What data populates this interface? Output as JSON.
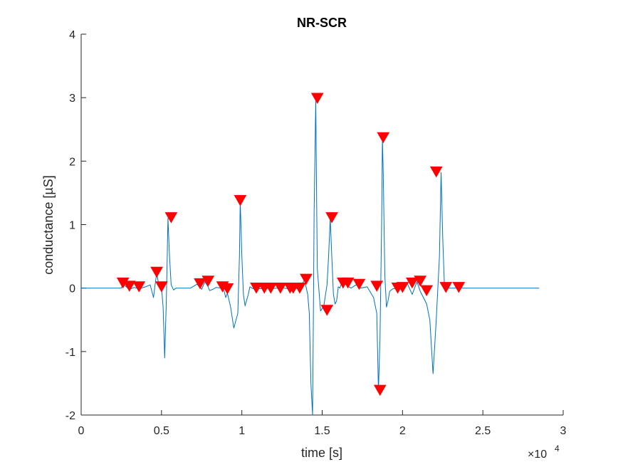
{
  "chart_data": {
    "type": "line",
    "title": "NR-SCR",
    "xlabel": "time [s]",
    "ylabel": "conductance [µS]",
    "xlim": [
      0,
      3
    ],
    "ylim": [
      -2,
      4
    ],
    "x_scale_label": "×10",
    "x_scale_exponent": "4",
    "xticks": [
      0,
      0.5,
      1,
      1.5,
      2,
      2.5,
      3
    ],
    "xtick_labels": [
      "0",
      "0.5",
      "1",
      "1.5",
      "2",
      "2.5",
      "3"
    ],
    "yticks": [
      -2,
      -1,
      0,
      1,
      2,
      3,
      4
    ],
    "ytick_labels": [
      "-2",
      "-1",
      "0",
      "1",
      "2",
      "3",
      "4"
    ],
    "grid": false,
    "line_color": "#0072BD",
    "marker_color": "#FF0000",
    "series": [
      {
        "x": [
          0,
          0.25,
          0.26,
          0.28,
          0.3,
          0.33,
          0.36,
          0.4,
          0.43,
          0.45,
          0.46,
          0.47,
          0.48,
          0.5,
          0.51,
          0.52,
          0.53,
          0.535,
          0.54,
          0.55,
          0.56,
          0.575,
          0.59,
          0.62,
          0.68,
          0.72,
          0.74,
          0.75,
          0.77,
          0.79,
          0.8,
          0.82,
          0.84,
          0.87,
          0.89,
          0.9,
          0.91,
          0.93,
          0.95,
          0.975,
          0.985,
          0.99,
          1.0,
          1.01,
          1.02,
          1.04,
          1.05,
          1.07,
          1.09,
          1.11,
          1.14,
          1.18,
          1.22,
          1.26,
          1.3,
          1.33,
          1.36,
          1.39,
          1.41,
          1.42,
          1.43,
          1.44,
          1.445,
          1.45,
          1.46,
          1.465,
          1.47,
          1.49,
          1.51,
          1.53,
          1.54,
          1.55,
          1.56,
          1.57,
          1.58,
          1.59,
          1.6,
          1.61,
          1.62,
          1.63,
          1.64,
          1.66,
          1.68,
          1.71,
          1.74,
          1.78,
          1.82,
          1.84,
          1.85,
          1.86,
          1.87,
          1.875,
          1.88,
          1.89,
          1.9,
          1.91,
          1.92,
          1.94,
          1.97,
          2.0,
          2.03,
          2.06,
          2.09,
          2.11,
          2.13,
          2.15,
          2.17,
          2.19,
          2.21,
          2.23,
          2.24,
          2.25,
          2.26,
          2.27,
          2.28,
          2.3,
          2.32,
          2.35,
          2.4,
          2.5,
          2.7,
          2.85
        ],
        "y": [
          0,
          0,
          0.07,
          0.02,
          -0.02,
          0.01,
          -0.01,
          0.02,
          0.05,
          -0.15,
          0.05,
          0.24,
          0.1,
          0.01,
          -0.3,
          -1.1,
          -0.2,
          0.4,
          1.1,
          0.5,
          0.05,
          -0.03,
          0,
          0,
          0,
          0.06,
          0.02,
          -0.02,
          0.1,
          0.02,
          -0.04,
          -0.02,
          0.01,
          0.0,
          -0.05,
          -0.15,
          -0.08,
          -0.3,
          -0.63,
          -0.4,
          0.5,
          1.37,
          0.5,
          -0.1,
          -0.28,
          -0.1,
          0.02,
          -0.01,
          0.01,
          -0.01,
          0.0,
          -0.01,
          0.0,
          0.0,
          -0.01,
          -0.01,
          0.0,
          0.13,
          -0.1,
          -0.4,
          -1.5,
          -2.0,
          -0.5,
          1.2,
          2.98,
          1.5,
          0.3,
          -0.36,
          -0.28,
          0.05,
          0.5,
          1.1,
          0.5,
          -0.1,
          -0.25,
          -0.2,
          0.02,
          0.0,
          0.07,
          0.0,
          0.07,
          0.03,
          0.0,
          0.05,
          0.0,
          0.02,
          -0.15,
          -0.4,
          -1.62,
          -0.8,
          1.0,
          2.36,
          1.8,
          0.2,
          -0.3,
          -0.2,
          -0.05,
          -0.01,
          0.0,
          0.0,
          0.07,
          -0.1,
          0.1,
          -0.05,
          -0.15,
          -0.25,
          -0.5,
          -1.35,
          -0.5,
          0.5,
          1.82,
          0.8,
          0.1,
          0.0,
          0.0,
          0.0,
          0.0,
          0.0,
          0.0,
          0.0,
          0.0,
          0.0
        ]
      }
    ],
    "markers": {
      "x": [
        0.26,
        0.3,
        0.36,
        0.47,
        0.5,
        0.56,
        0.74,
        0.79,
        0.88,
        0.91,
        0.99,
        1.09,
        1.14,
        1.18,
        1.24,
        1.3,
        1.32,
        1.36,
        1.4,
        1.47,
        1.53,
        1.56,
        1.63,
        1.66,
        1.73,
        1.84,
        1.86,
        1.88,
        1.97,
        2.0,
        2.06,
        2.11,
        2.15,
        2.21,
        2.27,
        2.35
      ],
      "y": [
        0.07,
        0.02,
        0.01,
        0.24,
        0.01,
        1.1,
        0.06,
        0.1,
        0.01,
        -0.02,
        1.37,
        -0.01,
        -0.01,
        -0.01,
        -0.01,
        -0.01,
        -0.01,
        -0.01,
        0.13,
        2.98,
        -0.36,
        1.1,
        0.07,
        0.07,
        0.05,
        0.02,
        -1.62,
        2.36,
        -0.01,
        0.0,
        0.07,
        0.1,
        -0.05,
        1.82,
        0.0,
        0.0
      ]
    }
  }
}
